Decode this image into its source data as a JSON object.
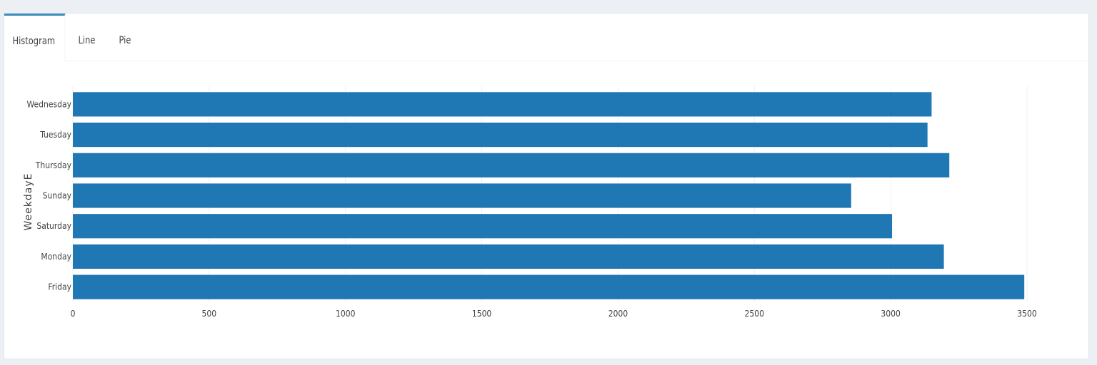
{
  "tabs": [
    {
      "label": "Histogram",
      "active": true
    },
    {
      "label": "Line",
      "active": false
    },
    {
      "label": "Pie",
      "active": false
    }
  ],
  "chart_data": {
    "type": "bar",
    "orientation": "horizontal",
    "categories": [
      "Wednesday",
      "Tuesday",
      "Thursday",
      "Sunday",
      "Saturday",
      "Monday",
      "Friday"
    ],
    "values": [
      3150,
      3135,
      3215,
      2855,
      3005,
      3195,
      3490
    ],
    "xlim": [
      0,
      3500
    ],
    "xticks": [
      0,
      500,
      1000,
      1500,
      2000,
      2500,
      3000,
      3500
    ],
    "ylabel": "WeekdayE",
    "bar_color": "#1f77b4",
    "grid": true
  }
}
